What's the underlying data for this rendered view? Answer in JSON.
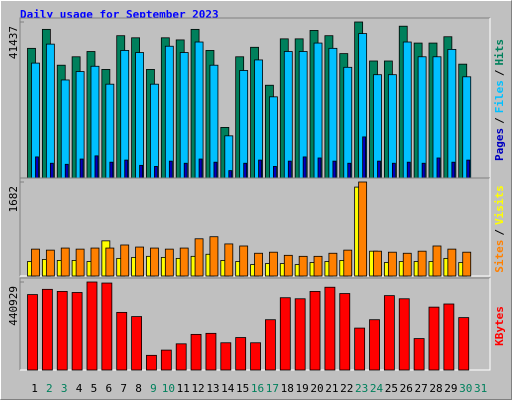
{
  "chart_data": [
    {
      "type": "bar",
      "title": "Daily usage for September 2023",
      "legend_separator": "/",
      "series": [
        {
          "name": "Hits",
          "color": "#00805c",
          "values": [
            34440,
            39480,
            29960,
            32200,
            33600,
            28840,
            37800,
            37240,
            28840,
            37240,
            36680,
            39480,
            33880,
            13440,
            32200,
            34720,
            24640,
            36960,
            36960,
            39200,
            37800,
            33040,
            41437,
            31080,
            31080,
            40320,
            35840,
            35840,
            37520,
            30240
          ]
        },
        {
          "name": "Files",
          "color": "#00c0ff",
          "values": [
            30520,
            35560,
            26040,
            28280,
            29680,
            24920,
            33880,
            33320,
            24920,
            35000,
            33320,
            36120,
            29960,
            11200,
            28560,
            31360,
            21560,
            33600,
            33600,
            35840,
            34440,
            29400,
            38360,
            27440,
            27440,
            36120,
            32200,
            32200,
            34160,
            26880
          ]
        },
        {
          "name": "Pages",
          "color": "#0000c0",
          "values": [
            5600,
            3920,
            3640,
            5040,
            5880,
            4200,
            4760,
            3360,
            3080,
            4480,
            3920,
            5040,
            4200,
            1960,
            3920,
            4760,
            3080,
            4480,
            5600,
            5320,
            4480,
            3920,
            10920,
            4480,
            3920,
            4200,
            3920,
            5320,
            4200,
            4760
          ]
        }
      ],
      "ylim": [
        0,
        41437
      ],
      "yticks": [
        41437
      ]
    },
    {
      "type": "bar",
      "legend_separator": "/",
      "series": [
        {
          "name": "Visits",
          "color": "#ffff00",
          "values": [
            259,
            296,
            278,
            278,
            259,
            629,
            315,
            333,
            352,
            333,
            315,
            352,
            389,
            278,
            259,
            204,
            222,
            222,
            204,
            241,
            259,
            278,
            1591,
            444,
            241,
            259,
            259,
            259,
            315,
            241
          ]
        },
        {
          "name": "Sites",
          "color": "#ff8000",
          "values": [
            481,
            463,
            500,
            481,
            500,
            500,
            555,
            518,
            500,
            481,
            500,
            666,
            703,
            574,
            537,
            407,
            426,
            370,
            352,
            352,
            407,
            463,
            1682,
            444,
            426,
            407,
            444,
            537,
            481,
            426
          ]
        }
      ],
      "ylim": [
        0,
        1682
      ],
      "yticks": [
        1682
      ]
    },
    {
      "type": "bar",
      "categories": [
        "1",
        "2",
        "3",
        "4",
        "5",
        "6",
        "7",
        "8",
        "9",
        "10",
        "11",
        "12",
        "13",
        "14",
        "15",
        "16",
        "17",
        "18",
        "19",
        "20",
        "21",
        "22",
        "23",
        "24",
        "25",
        "26",
        "27",
        "28",
        "29",
        "30",
        "31"
      ],
      "category_colors": [
        "#000000",
        "#00805c",
        "#00805c",
        "#000000",
        "#000000",
        "#000000",
        "#000000",
        "#000000",
        "#00805c",
        "#00805c",
        "#000000",
        "#000000",
        "#000000",
        "#000000",
        "#000000",
        "#00805c",
        "#00805c",
        "#000000",
        "#000000",
        "#000000",
        "#000000",
        "#000000",
        "#00805c",
        "#00805c",
        "#000000",
        "#000000",
        "#000000",
        "#000000",
        "#000000",
        "#00805c",
        "#00805c"
      ],
      "series": [
        {
          "name": "KBytes",
          "color": "#ff0000",
          "values": [
            377900,
            404200,
            393700,
            388400,
            440929,
            435700,
            288700,
            267700,
            73500,
            99700,
            131200,
            178500,
            183700,
            136500,
            162700,
            136500,
            252000,
            362200,
            356900,
            393700,
            414700,
            383200,
            210000,
            252000,
            372700,
            356900,
            157500,
            315000,
            330700,
            262500,
            null
          ]
        }
      ],
      "ylim": [
        0,
        440929
      ],
      "yticks": [
        440929
      ]
    }
  ]
}
